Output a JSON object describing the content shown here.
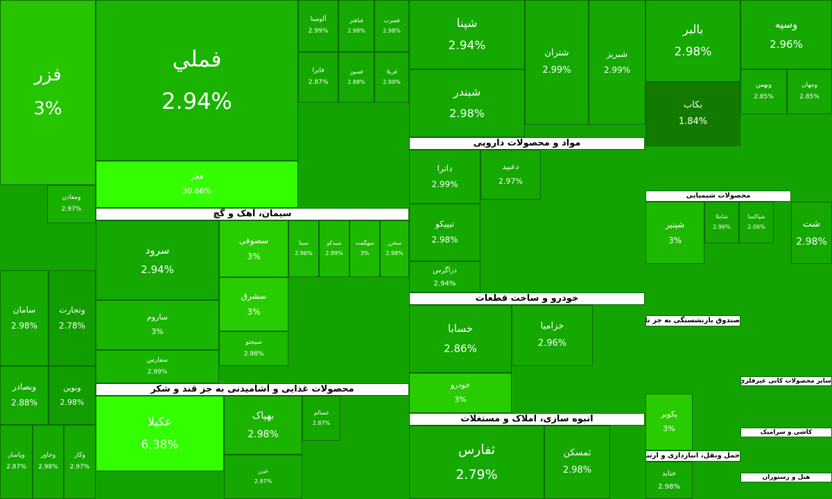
{
  "headers": [
    "سیمان، آهک و گچ",
    "محصولات غذایی و آشامیدنی به جز قند و شکر",
    "مواد و محصولات دارویی",
    "خودرو و ساخت قطعات",
    "انبوه سازی، املاک و مستغلات",
    "محصولات شیمیایی",
    "صندوق بازنشستگی به جز تامین اجتماعی",
    "حمل ونقل، انبارداری و ارتباطات",
    "سایر محصولات کانی غیرفلزی",
    "کاشی و سرامیک",
    "هتل و رستوران"
  ],
  "tiles": [
    {
      "name": "فزر",
      "change": "3%"
    },
    {
      "name": "ومعادن",
      "change": "2.97%"
    },
    {
      "name": "سامان",
      "change": "2.98%"
    },
    {
      "name": "وتجارت",
      "change": "2.78%"
    },
    {
      "name": "وبصادر",
      "change": "2.88%"
    },
    {
      "name": "ونوین",
      "change": "2.98%"
    },
    {
      "name": "وپاسار",
      "change": "2.87%"
    },
    {
      "name": "وخاور",
      "change": "2.98%"
    },
    {
      "name": "وکار",
      "change": "2.97%"
    },
    {
      "name": "فملي",
      "change": "2.94%"
    },
    {
      "name": "فجر",
      "change": "30.66%"
    },
    {
      "name": "سرود",
      "change": "2.94%"
    },
    {
      "name": "ساروم",
      "change": "3%"
    },
    {
      "name": "سفارس",
      "change": "2.99%"
    },
    {
      "name": "سصوفی",
      "change": "3%"
    },
    {
      "name": "سشرق",
      "change": "3%"
    },
    {
      "name": "سیجتو",
      "change": "2.98%"
    },
    {
      "name": "سبتا",
      "change": "2.96%"
    },
    {
      "name": "سیدکو",
      "change": "2.99%"
    },
    {
      "name": "سهگمت",
      "change": "3%"
    },
    {
      "name": "سخزر",
      "change": "2.98%"
    },
    {
      "name": "عکیلا",
      "change": "6.38%"
    },
    {
      "name": "بهپاک",
      "change": "2.98%"
    },
    {
      "name": "غبزر",
      "change": "2.97%"
    },
    {
      "name": "غسالم",
      "change": "2.87%"
    },
    {
      "name": "آلومینا",
      "change": "2.99%"
    },
    {
      "name": "فباهنر",
      "change": "2.98%"
    },
    {
      "name": "فسرب",
      "change": "2.98%"
    },
    {
      "name": "فایرا",
      "change": "2.87%"
    },
    {
      "name": "فسوز",
      "change": "2.88%"
    },
    {
      "name": "فریلا",
      "change": "2.99%"
    },
    {
      "name": "شپنا",
      "change": "2.94%"
    },
    {
      "name": "شبندر",
      "change": "2.98%"
    },
    {
      "name": "شتران",
      "change": "2.99%"
    },
    {
      "name": "شبریز",
      "change": "2.99%"
    },
    {
      "name": "داترا",
      "change": "2.99%"
    },
    {
      "name": "دعبید",
      "change": "2.97%"
    },
    {
      "name": "تیپیکو",
      "change": "2.98%"
    },
    {
      "name": "دزاگرس",
      "change": "2.94%"
    },
    {
      "name": "خسابا",
      "change": "2.86%"
    },
    {
      "name": "خودرو",
      "change": "3%"
    },
    {
      "name": "خزامیا",
      "change": "2.96%"
    },
    {
      "name": "ثفارس",
      "change": "2.79%"
    },
    {
      "name": "ثمسکن",
      "change": "2.98%"
    },
    {
      "name": "بالبر",
      "change": "2.98%"
    },
    {
      "name": "وسپه",
      "change": "2.96%"
    },
    {
      "name": "بکاب",
      "change": "1.84%"
    },
    {
      "name": "وبهمن",
      "change": "2.85%"
    },
    {
      "name": "ومهان",
      "change": "2.85%"
    },
    {
      "name": "شپنیر",
      "change": "3%"
    },
    {
      "name": "شاملا",
      "change": "2.96%"
    },
    {
      "name": "شپاکسا",
      "change": "2.06%"
    },
    {
      "name": "شت",
      "change": "2.98%"
    },
    {
      "name": "پکویر",
      "change": "3%"
    },
    {
      "name": "حتاید",
      "change": "2.98%"
    }
  ]
}
